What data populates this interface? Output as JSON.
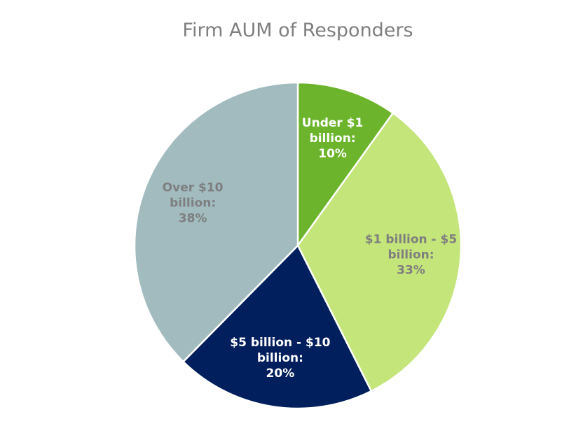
{
  "chart_data": {
    "type": "pie",
    "title": "Firm AUM of Responders",
    "slices": [
      {
        "category": "Under $1 billion:",
        "value": 10,
        "value_label": "10%",
        "color": "#6cb42c",
        "label_color": "#ffffff",
        "label_lines": [
          "Under $1",
          "billion:",
          "10%"
        ]
      },
      {
        "category": "$1 billion - $5 billion:",
        "value": 33,
        "value_label": "33%",
        "color": "#c3e57a",
        "label_color": "#7f7f7f",
        "label_lines": [
          "$1 billion - $5",
          "billion:",
          "33%"
        ]
      },
      {
        "category": "$5 billion - $10 billion:",
        "value": 20,
        "value_label": "20%",
        "color": "#001f5c",
        "label_color": "#ffffff",
        "label_lines": [
          "$5 billion - $10",
          "billion:",
          "20%"
        ]
      },
      {
        "category": "Over $10 billion:",
        "value": 38,
        "value_label": "38%",
        "color": "#a1bbbf",
        "label_color": "#7f7f7f",
        "label_lines": [
          "Over $10",
          "billion:",
          "38%"
        ]
      }
    ],
    "start_angle": "12 o'clock",
    "direction": "clockwise",
    "legend": "none"
  }
}
